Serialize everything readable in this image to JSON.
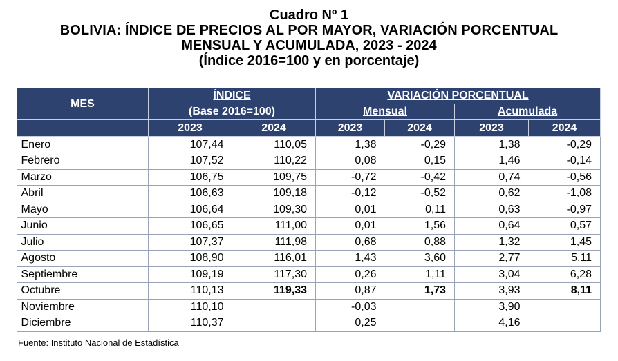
{
  "title": {
    "line1": "Cuadro Nº 1",
    "line2": "BOLIVIA: ÍNDICE DE PRECIOS AL POR MAYOR, VARIACIÓN PORCENTUAL",
    "line3": "MENSUAL Y ACUMULADA, 2023 - 2024",
    "line4": "(Índice 2016=100 y en porcentaje)"
  },
  "header": {
    "mes": "MES",
    "indice": "ÍNDICE",
    "base": "(Base 2016=100)",
    "variacion": "VARIACIÓN PORCENTUAL",
    "mensual": "Mensual",
    "acumulada": "Acumulada",
    "years": [
      "2023",
      "2024",
      "2023",
      "2024",
      "2023",
      "2024"
    ]
  },
  "rows": [
    {
      "mes": "Enero",
      "vals": [
        "107,44",
        "110,05",
        "1,38",
        "-0,29",
        "1,38",
        "-0,29"
      ]
    },
    {
      "mes": "Febrero",
      "vals": [
        "107,52",
        "110,22",
        "0,08",
        "0,15",
        "1,46",
        "-0,14"
      ]
    },
    {
      "mes": "Marzo",
      "vals": [
        "106,75",
        "109,75",
        "-0,72",
        "-0,42",
        "0,74",
        "-0,56"
      ]
    },
    {
      "mes": "Abril",
      "vals": [
        "106,63",
        "109,18",
        "-0,12",
        "-0,52",
        "0,62",
        "-1,08"
      ]
    },
    {
      "mes": "Mayo",
      "vals": [
        "106,64",
        "109,30",
        "0,01",
        "0,11",
        "0,63",
        "-0,97"
      ]
    },
    {
      "mes": "Junio",
      "vals": [
        "106,65",
        "111,00",
        "0,01",
        "1,56",
        "0,64",
        "0,57"
      ]
    },
    {
      "mes": "Julio",
      "vals": [
        "107,37",
        "111,98",
        "0,68",
        "0,88",
        "1,32",
        "1,45"
      ]
    },
    {
      "mes": "Agosto",
      "vals": [
        "108,90",
        "116,01",
        "1,43",
        "3,60",
        "2,77",
        "5,11"
      ]
    },
    {
      "mes": "Septiembre",
      "vals": [
        "109,19",
        "117,30",
        "0,26",
        "1,11",
        "3,04",
        "6,28"
      ]
    },
    {
      "mes": "Octubre",
      "vals": [
        "110,13",
        "119,33",
        "0,87",
        "1,73",
        "3,93",
        "8,11"
      ]
    },
    {
      "mes": "Noviembre",
      "vals": [
        "110,10",
        "",
        "-0,03",
        "",
        "3,90",
        ""
      ]
    },
    {
      "mes": "Diciembre",
      "vals": [
        "110,37",
        "",
        "0,25",
        "",
        "4,16",
        ""
      ]
    }
  ],
  "source": "Fuente: Instituto Nacional de Estadística",
  "colors": {
    "header_bg": "#2e4270",
    "header_text": "#ffffff"
  }
}
